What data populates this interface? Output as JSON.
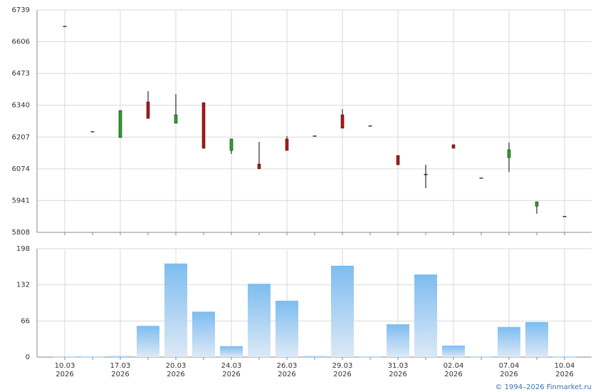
{
  "chart_data": [
    {
      "type": "candlestick",
      "open": [
        6670,
        6229,
        6205,
        6354,
        6265,
        6351,
        6151,
        6094,
        6199,
        6211,
        6300,
        6253,
        6130,
        6050,
        6175,
        6035,
        6121,
        5918,
        5874
      ],
      "high": [
        6670,
        6229,
        6318,
        6399,
        6387,
        6351,
        6199,
        6187,
        6211,
        6211,
        6324,
        6253,
        6130,
        6091,
        6175,
        6035,
        6184,
        5936,
        5874
      ],
      "low": [
        6670,
        6229,
        6205,
        6285,
        6265,
        6160,
        6136,
        6074,
        6151,
        6211,
        6244,
        6253,
        6091,
        5993,
        6160,
        6035,
        6061,
        5886,
        5874
      ],
      "close": [
        6670,
        6229,
        6318,
        6285,
        6300,
        6160,
        6199,
        6074,
        6151,
        6211,
        6244,
        6253,
        6091,
        6050,
        6160,
        6035,
        6154,
        5936,
        5874
      ],
      "up_color": "#22aa22",
      "down_color": "#bb1111",
      "ylim": [
        5808,
        6739
      ],
      "yticks": [
        5808,
        5941,
        6074,
        6207,
        6340,
        6473,
        6606,
        6739
      ],
      "grid": true
    },
    {
      "type": "bar",
      "categories": [
        "10.03",
        null,
        "17.03",
        null,
        "20.03",
        null,
        "24.03",
        null,
        "26.03",
        null,
        "29.03",
        null,
        "31.03",
        null,
        "02.04",
        null,
        "07.04",
        null,
        "10.04"
      ],
      "category_years": [
        "2026",
        null,
        "2026",
        null,
        "2026",
        null,
        "2026",
        null,
        "2026",
        null,
        "2026",
        null,
        "2026",
        null,
        "2026",
        null,
        "2026",
        null,
        "2026"
      ],
      "values": [
        1,
        1,
        2,
        57,
        171,
        83,
        20,
        134,
        103,
        2,
        167,
        1,
        60,
        151,
        21,
        1,
        55,
        64,
        1
      ],
      "color": "#7dbdf0",
      "color_bottom": "#dde9f6",
      "ylim": [
        0,
        198
      ],
      "yticks": [
        0,
        66,
        132,
        198
      ],
      "grid": true
    }
  ],
  "footer": "© 1994–2026 Finmarket.ru"
}
